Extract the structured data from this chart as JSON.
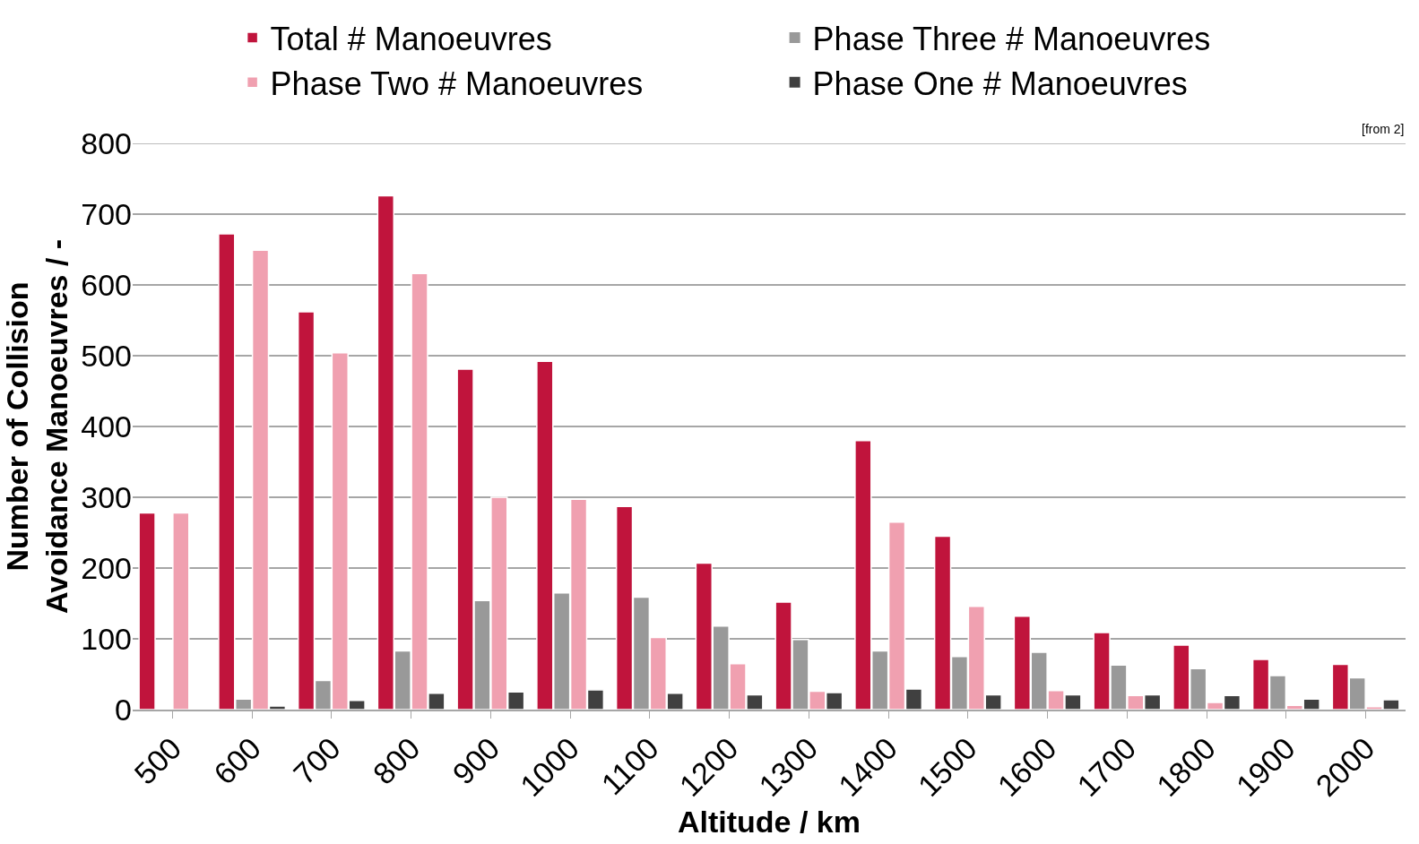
{
  "chart_data": {
    "type": "bar",
    "xlabel": "Altitude / km",
    "ylabel": "Number of Collision Avoidance Manoeuvres / -",
    "categories": [
      "500",
      "600",
      "700",
      "800",
      "900",
      "1000",
      "1100",
      "1200",
      "1300",
      "1400",
      "1500",
      "1600",
      "1700",
      "1800",
      "1900",
      "2000"
    ],
    "series": [
      {
        "name": "Total # Manoeuvres",
        "color": "#c0143c",
        "values": [
          278,
          672,
          562,
          726,
          481,
          492,
          287,
          207,
          152,
          380,
          245,
          132,
          109,
          91,
          71,
          64
        ]
      },
      {
        "name": "Phase Three # Manoeuvres",
        "color": "#999999",
        "values": [
          0,
          15,
          41,
          83,
          154,
          165,
          159,
          118,
          99,
          83,
          75,
          81,
          63,
          58,
          48,
          45
        ]
      },
      {
        "name": "Phase Two # Manoeuvres",
        "color": "#f0a0b0",
        "values": [
          278,
          649,
          504,
          616,
          300,
          297,
          102,
          65,
          26,
          265,
          146,
          27,
          20,
          10,
          6,
          4
        ]
      },
      {
        "name": "Phase One # Manoeuvres",
        "color": "#404040",
        "values": [
          0,
          5,
          13,
          23,
          25,
          28,
          23,
          21,
          24,
          29,
          21,
          21,
          21,
          20,
          15,
          14
        ]
      }
    ],
    "ylim": [
      0,
      800
    ],
    "yticks": [
      0,
      100,
      200,
      300,
      400,
      500,
      600,
      700,
      800
    ],
    "grid": "y",
    "legend": "top",
    "annotations": [
      "[from 2]"
    ]
  }
}
